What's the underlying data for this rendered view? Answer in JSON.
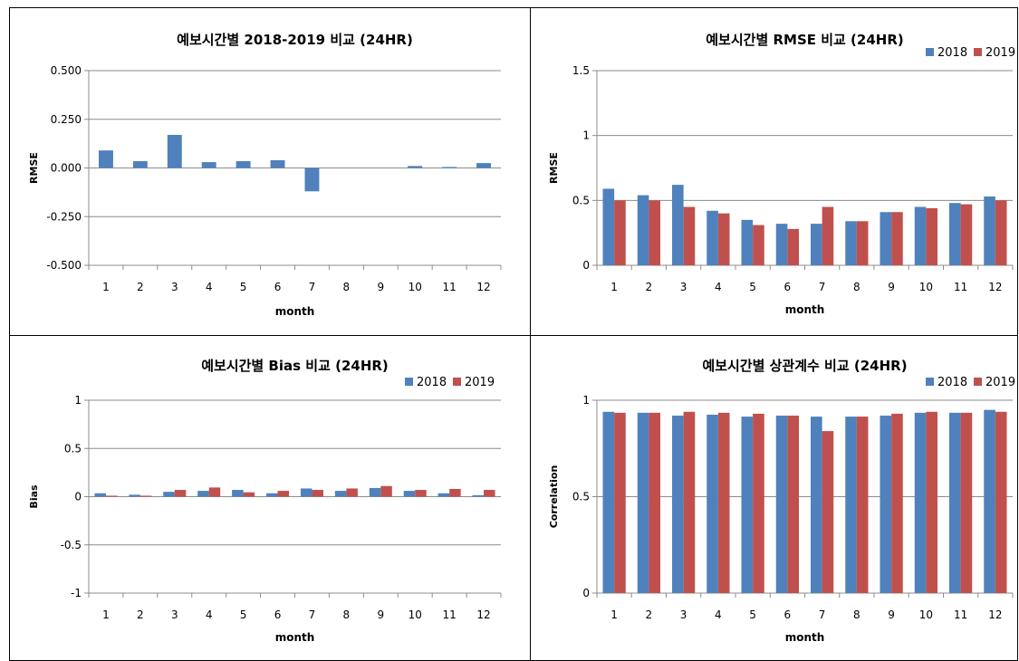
{
  "colors": {
    "y2018": "#4F81BD",
    "y2019": "#C0504D",
    "grid": "#8C8C8C",
    "axis": "#8C8C8C"
  },
  "chart_data": [
    {
      "type": "bar",
      "title": "예보시간별 2018-2019 비교 (24HR)",
      "xlabel": "month",
      "ylabel": "RMSE",
      "categories": [
        "1",
        "2",
        "3",
        "4",
        "5",
        "6",
        "7",
        "8",
        "9",
        "10",
        "11",
        "12"
      ],
      "ylim": [
        -0.5,
        0.5
      ],
      "yticks": [
        "0.500",
        "0.250",
        "0.000",
        "-0.250",
        "-0.500"
      ],
      "yticks_values": [
        0.5,
        0.25,
        0,
        -0.25,
        -0.5
      ],
      "grid": true,
      "legend": "none",
      "series": [
        {
          "values": [
            0.09,
            0.035,
            0.17,
            0.03,
            0.035,
            0.04,
            -0.12,
            0,
            0,
            0.01,
            0.005,
            0.025
          ]
        }
      ]
    },
    {
      "type": "bar",
      "title": "예보시간별 RMSE 비교 (24HR)",
      "xlabel": "month",
      "ylabel": "RMSE",
      "categories": [
        "1",
        "2",
        "3",
        "4",
        "5",
        "6",
        "7",
        "8",
        "9",
        "10",
        "11",
        "12"
      ],
      "ylim": [
        0,
        1.5
      ],
      "yticks": [
        "1.5",
        "1",
        "0.5",
        "0"
      ],
      "yticks_values": [
        1.5,
        1,
        0.5,
        0
      ],
      "grid": true,
      "legend": "top-right",
      "series": [
        {
          "name": "2018",
          "values": [
            0.59,
            0.54,
            0.62,
            0.42,
            0.35,
            0.32,
            0.32,
            0.34,
            0.41,
            0.45,
            0.48,
            0.53
          ]
        },
        {
          "name": "2019",
          "values": [
            0.5,
            0.5,
            0.45,
            0.4,
            0.31,
            0.28,
            0.45,
            0.34,
            0.41,
            0.44,
            0.47,
            0.5
          ]
        }
      ]
    },
    {
      "type": "bar",
      "title": "예보시간별 Bias 비교 (24HR)",
      "xlabel": "month",
      "ylabel": "Bias",
      "categories": [
        "1",
        "2",
        "3",
        "4",
        "5",
        "6",
        "7",
        "8",
        "9",
        "10",
        "11",
        "12"
      ],
      "ylim": [
        -1,
        1
      ],
      "yticks": [
        "1",
        "0.5",
        "0",
        "-0.5",
        "-1"
      ],
      "yticks_values": [
        1,
        0.5,
        0,
        -0.5,
        -1
      ],
      "grid": true,
      "legend": "top-right",
      "series": [
        {
          "name": "2018",
          "values": [
            0.035,
            0.02,
            0.05,
            0.06,
            0.07,
            0.035,
            0.085,
            0.06,
            0.09,
            0.06,
            0.035,
            0.015
          ]
        },
        {
          "name": "2019",
          "values": [
            0.01,
            0.01,
            0.07,
            0.095,
            0.045,
            0.06,
            0.07,
            0.085,
            0.11,
            0.07,
            0.08,
            0.07
          ]
        }
      ]
    },
    {
      "type": "bar",
      "title": "예보시간별 상관계수 비교 (24HR)",
      "xlabel": "month",
      "ylabel": "Correlation",
      "categories": [
        "1",
        "2",
        "3",
        "4",
        "5",
        "6",
        "7",
        "8",
        "9",
        "10",
        "11",
        "12"
      ],
      "ylim": [
        0,
        1
      ],
      "yticks": [
        "1",
        "0.5",
        "0"
      ],
      "yticks_values": [
        1,
        0.5,
        0
      ],
      "grid": true,
      "legend": "top-right",
      "series": [
        {
          "name": "2018",
          "values": [
            0.94,
            0.935,
            0.92,
            0.925,
            0.915,
            0.92,
            0.915,
            0.915,
            0.92,
            0.935,
            0.935,
            0.95
          ]
        },
        {
          "name": "2019",
          "values": [
            0.935,
            0.935,
            0.94,
            0.935,
            0.93,
            0.92,
            0.84,
            0.915,
            0.93,
            0.94,
            0.935,
            0.94
          ]
        }
      ]
    }
  ]
}
